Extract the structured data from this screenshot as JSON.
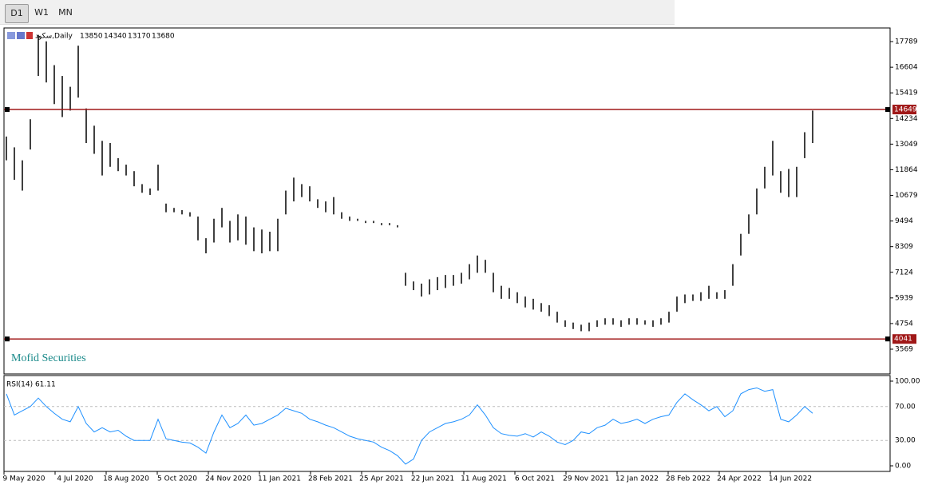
{
  "toolbar": {
    "buttons": [
      "D1",
      "W1",
      "MN"
    ]
  },
  "chart_data": [
    {
      "type": "ohlc",
      "symbol": "سکود,Daily",
      "ohlc": [
        13850,
        14340,
        13170,
        13680
      ],
      "watermark": "Mofid Securities",
      "color": "#000000",
      "ylim": [
        2424,
        18419
      ],
      "yticks": [
        17789,
        16604,
        15419,
        14234,
        13049,
        11864,
        10679,
        9494,
        8309,
        7124,
        5939,
        4754,
        3569
      ],
      "levels": [
        14649,
        4041
      ],
      "level_color": "#a01818",
      "high": [
        13400,
        12900,
        12300,
        14200,
        18100,
        17800,
        16700,
        16200,
        15700,
        17600,
        14700,
        13900,
        13200,
        13100,
        12400,
        12100,
        11800,
        11200,
        11000,
        12100,
        10300,
        10100,
        10000,
        9900,
        9700,
        8700,
        9600,
        10100,
        9500,
        9800,
        9700,
        9200,
        9100,
        9000,
        9600,
        10900,
        11500,
        11200,
        11100,
        10500,
        10400,
        10600,
        9900,
        9700,
        9600,
        9500,
        9500,
        9400,
        9400,
        9300,
        7100,
        6700,
        6600,
        6800,
        6900,
        7000,
        7000,
        7100,
        7500,
        7900,
        7700,
        7100,
        6500,
        6400,
        6200,
        6000,
        5900,
        5700,
        5600,
        5300,
        4900,
        4800,
        4700,
        4800,
        4900,
        5000,
        5000,
        4900,
        5000,
        5000,
        4900,
        4900,
        5000,
        5300,
        6000,
        6100,
        6100,
        6200,
        6500,
        6200,
        6300,
        7500,
        8900,
        9800,
        11000,
        12000,
        13200,
        11800,
        11900,
        12000,
        13600,
        14600
      ],
      "low": [
        12300,
        11400,
        10900,
        12800,
        16200,
        15900,
        14900,
        14300,
        14600,
        15200,
        13100,
        12600,
        11600,
        12000,
        11800,
        11600,
        11100,
        10800,
        10700,
        10900,
        9900,
        9900,
        9800,
        9700,
        8600,
        8000,
        8500,
        9200,
        8500,
        8600,
        8400,
        8100,
        8000,
        8100,
        8100,
        9800,
        10400,
        10600,
        10400,
        10100,
        9900,
        9800,
        9600,
        9500,
        9500,
        9400,
        9400,
        9300,
        9300,
        9200,
        6500,
        6300,
        6000,
        6100,
        6300,
        6400,
        6500,
        6600,
        6800,
        7100,
        7100,
        6200,
        5900,
        5900,
        5700,
        5500,
        5400,
        5300,
        5100,
        4800,
        4600,
        4500,
        4400,
        4400,
        4600,
        4700,
        4700,
        4600,
        4700,
        4700,
        4700,
        4600,
        4700,
        4800,
        5300,
        5700,
        5800,
        5800,
        5900,
        5900,
        5900,
        6500,
        7900,
        8900,
        9800,
        11000,
        11600,
        10800,
        10600,
        10600,
        12400,
        13100
      ],
      "categories": [
        "9 May 2020",
        "4 Jul 2020",
        "18 Aug 2020",
        "5 Oct 2020",
        "24 Nov 2020",
        "11 Jan 2021",
        "28 Feb 2021",
        "25 Apr 2021",
        "22 Jun 2021",
        "11 Aug 2021",
        "6 Oct 2021",
        "29 Nov 2021",
        "12 Jan 2022",
        "28 Feb 2022",
        "24 Apr 2022",
        "14 Jun 2022"
      ]
    },
    {
      "type": "line",
      "title": "RSI(14) 61.11",
      "color": "#1e90ff",
      "ylim": [
        -6.6,
        106.6
      ],
      "yticks": [
        {
          "value": 100,
          "label": "100.00"
        },
        {
          "value": 70,
          "label": "70.00"
        },
        {
          "value": 30,
          "label": "30.00"
        },
        {
          "value": 0,
          "label": "0.00"
        }
      ],
      "values": [
        85,
        60,
        65,
        70,
        80,
        70,
        62,
        55,
        52,
        70,
        50,
        40,
        45,
        40,
        42,
        35,
        30,
        30,
        30,
        55,
        32,
        30,
        28,
        27,
        22,
        15,
        40,
        60,
        45,
        50,
        60,
        48,
        50,
        55,
        60,
        68,
        65,
        62,
        55,
        52,
        48,
        45,
        40,
        35,
        32,
        30,
        28,
        22,
        18,
        12,
        2,
        8,
        30,
        40,
        45,
        50,
        52,
        55,
        60,
        72,
        60,
        45,
        38,
        36,
        35,
        38,
        34,
        40,
        35,
        28,
        25,
        30,
        40,
        38,
        45,
        48,
        55,
        50,
        52,
        55,
        50,
        55,
        58,
        60,
        75,
        85,
        78,
        72,
        65,
        70,
        58,
        65,
        85,
        90,
        92,
        88,
        90,
        55,
        52,
        60,
        70,
        62
      ]
    }
  ]
}
